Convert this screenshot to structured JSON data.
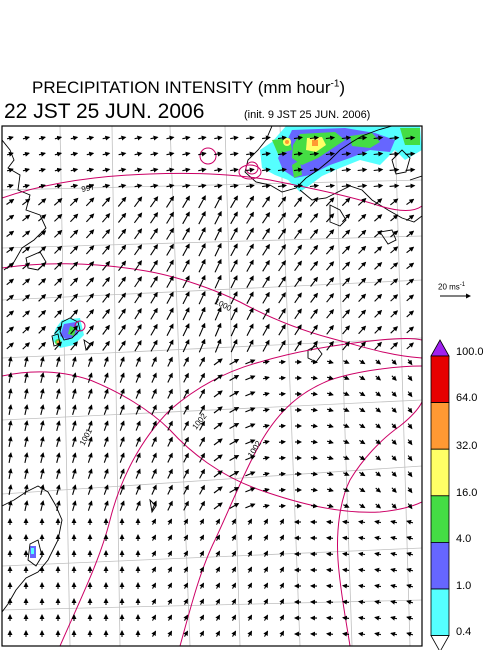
{
  "title": {
    "main": "PRECIPITATION INTENSITY (mm hour",
    "unit_exp": "-1",
    "close": ")"
  },
  "valid_time": "22 JST 25 JUN. 2006",
  "init_time": "(init. 9 JST 25 JUN. 2006)",
  "vector_scale": {
    "label": "20 ms",
    "exp": "-1"
  },
  "legend": {
    "levels": [
      "100.0",
      "64.0",
      "32.0",
      "16.0",
      "4.0",
      "1.0",
      "0.4"
    ],
    "colors": [
      "#a020f0",
      "#e60000",
      "#ff9933",
      "#ffff66",
      "#44dd44",
      "#6666ff",
      "#55ffff"
    ]
  },
  "isobars": [
    "997",
    "1000",
    "1001",
    "1002",
    "1002"
  ],
  "colors": {
    "isobar": "#cc0066",
    "coast": "#000000",
    "grid": "#c0c0c0"
  }
}
